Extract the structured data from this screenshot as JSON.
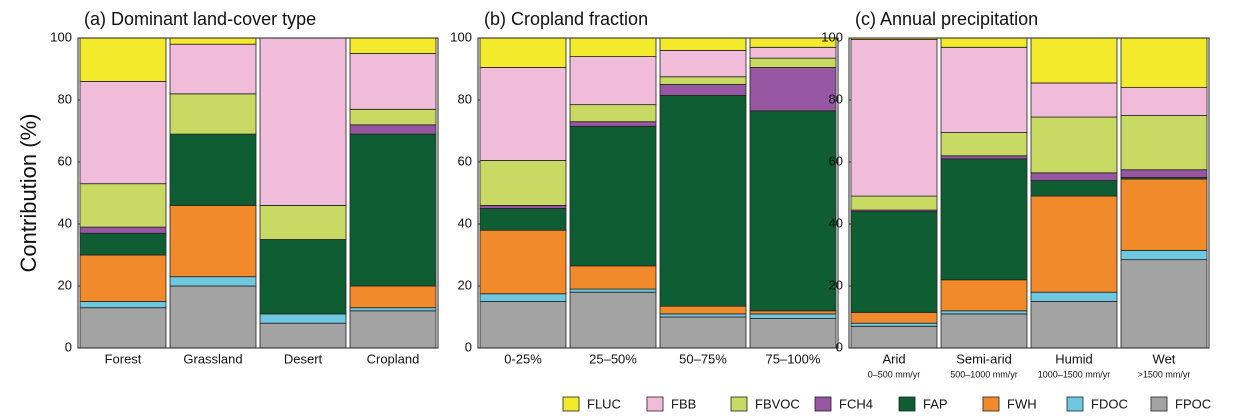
{
  "chart_data": [
    {
      "type": "bar",
      "stacked": true,
      "title": "(a) Dominant land-cover type",
      "ylabel": "Contribution (%)",
      "categories": [
        "Forest",
        "Grassland",
        "Desert",
        "Cropland"
      ],
      "ylim": [
        0,
        100
      ],
      "yticks": [
        0,
        20,
        40,
        60,
        80,
        100
      ],
      "series": [
        {
          "name": "FPOC",
          "color": "#a3a3a3",
          "values": [
            13,
            20,
            8,
            12
          ]
        },
        {
          "name": "FDOC",
          "color": "#6ec8e0",
          "values": [
            2,
            3,
            3,
            1
          ]
        },
        {
          "name": "FWH",
          "color": "#f18a2a",
          "values": [
            15,
            23,
            0,
            7
          ]
        },
        {
          "name": "FAP",
          "color": "#0f5e33",
          "values": [
            7,
            23,
            24,
            49
          ]
        },
        {
          "name": "FCH4",
          "color": "#9656a2",
          "values": [
            2,
            0,
            0,
            3
          ]
        },
        {
          "name": "FBVOC",
          "color": "#c8da64",
          "values": [
            14,
            13,
            11,
            5
          ]
        },
        {
          "name": "FBB",
          "color": "#f0bcd9",
          "values": [
            33,
            16,
            54,
            18
          ]
        },
        {
          "name": "FLUC",
          "color": "#f2ea2a",
          "values": [
            14,
            2,
            0,
            5
          ]
        }
      ]
    },
    {
      "type": "bar",
      "stacked": true,
      "title": "(b) Cropland fraction",
      "categories": [
        "0-25%",
        "25–50%",
        "50–75%",
        "75–100%"
      ],
      "ylim": [
        0,
        100
      ],
      "yticks": [
        0,
        20,
        40,
        60,
        80,
        100
      ],
      "series": [
        {
          "name": "FPOC",
          "color": "#a3a3a3",
          "values": [
            15,
            18,
            10,
            9.5
          ]
        },
        {
          "name": "FDOC",
          "color": "#6ec8e0",
          "values": [
            2.5,
            1,
            1,
            1.5
          ]
        },
        {
          "name": "FWH",
          "color": "#f18a2a",
          "values": [
            20.5,
            7.5,
            2.5,
            1
          ]
        },
        {
          "name": "FAP",
          "color": "#0f5e33",
          "values": [
            7,
            45,
            68,
            64.5
          ]
        },
        {
          "name": "FCH4",
          "color": "#9656a2",
          "values": [
            1,
            1.5,
            3.5,
            14
          ]
        },
        {
          "name": "FBVOC",
          "color": "#c8da64",
          "values": [
            14.5,
            5.5,
            2.5,
            3
          ]
        },
        {
          "name": "FBB",
          "color": "#f0bcd9",
          "values": [
            30,
            15.5,
            8.5,
            3.5
          ]
        },
        {
          "name": "FLUC",
          "color": "#f2ea2a",
          "values": [
            9.5,
            6,
            4,
            3
          ]
        }
      ]
    },
    {
      "type": "bar",
      "stacked": true,
      "title": "(c) Annual precipitation",
      "categories": [
        "Arid",
        "Semi-arid",
        "Humid",
        "Wet"
      ],
      "category_sublabels": [
        "0–500 mm/yr",
        "500–1000 mm/yr",
        "1000–1500 mm/yr",
        ">1500 mm/yr"
      ],
      "ylim": [
        0,
        100
      ],
      "yticks": [
        0,
        20,
        40,
        60,
        80,
        100
      ],
      "series": [
        {
          "name": "FPOC",
          "color": "#a3a3a3",
          "values": [
            7,
            11,
            15,
            28.5
          ]
        },
        {
          "name": "FDOC",
          "color": "#6ec8e0",
          "values": [
            1,
            1,
            3,
            3
          ]
        },
        {
          "name": "FWH",
          "color": "#f18a2a",
          "values": [
            3.5,
            10,
            31,
            23
          ]
        },
        {
          "name": "FAP",
          "color": "#0f5e33",
          "values": [
            32.5,
            39,
            5,
            0.5
          ]
        },
        {
          "name": "FCH4",
          "color": "#9656a2",
          "values": [
            0.5,
            1,
            2.5,
            2.5
          ]
        },
        {
          "name": "FBVOC",
          "color": "#c8da64",
          "values": [
            4.5,
            7.5,
            18,
            17.5
          ]
        },
        {
          "name": "FBB",
          "color": "#f0bcd9",
          "values": [
            50.5,
            27.5,
            11,
            9
          ]
        },
        {
          "name": "FLUC",
          "color": "#f2ea2a",
          "values": [
            0.5,
            3,
            14.5,
            16
          ]
        }
      ]
    }
  ]
}
